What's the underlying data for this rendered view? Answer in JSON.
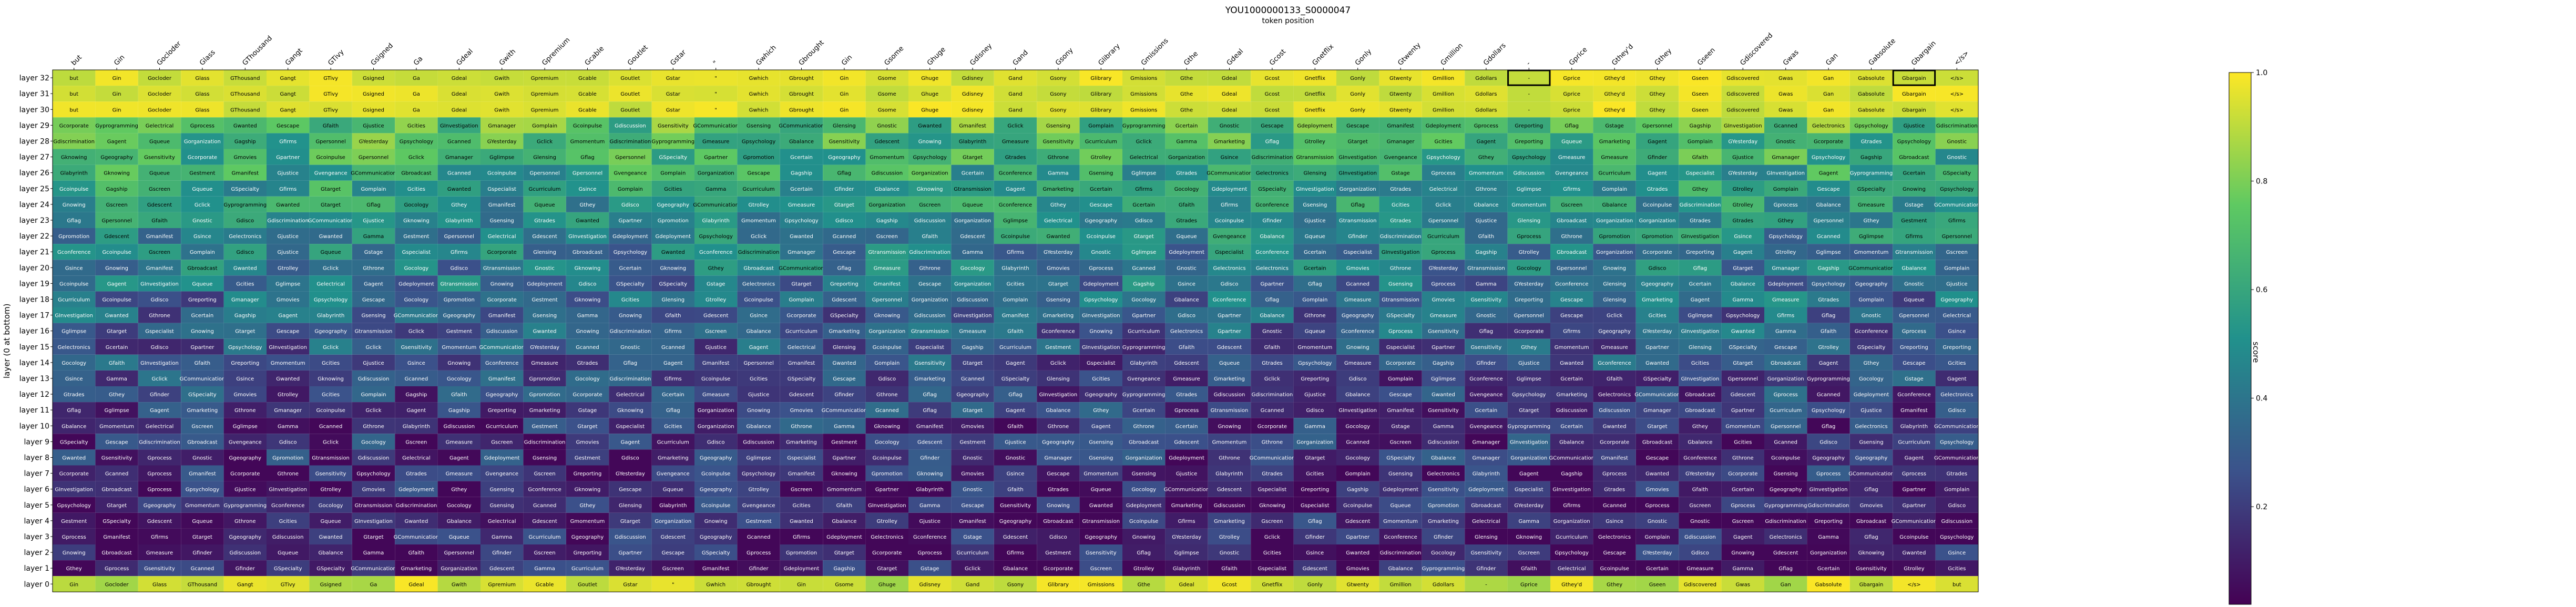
{
  "chart_data": {
    "type": "heatmap",
    "title": "YOU1000000133_S0000047",
    "xlabel": "token position",
    "ylabel": "layer (0 at bottom)",
    "colorbar_label": "score",
    "colorbar_ticks": [
      "0.2",
      "0.4",
      "0.6",
      "0.8",
      "1.0"
    ],
    "colormap": "viridis",
    "colors": {
      "low": "#440154",
      "mid": "#21918c",
      "high": "#fde725",
      "highlight_border": "#000000"
    },
    "x_tokens": [
      "but",
      "Gin",
      "Gocloder",
      "Glass",
      "GThousand",
      "Gangt",
      "GTivy",
      "Gsigned",
      "Ga",
      "Gdeal",
      "Gwith",
      "Gpremium",
      "Gcable",
      "Goutlet",
      "Gstar",
      "\"",
      "Gwhich",
      "Gbrought",
      "Gin",
      "Gsome",
      "Ghuge",
      "Gdisney",
      "Gand",
      "Gsony",
      "Glibrary",
      "Gmissions",
      "Gthe",
      "Gdeal",
      "Gcost",
      "Gnetflix",
      "Gonly",
      "Gtwenty",
      "Gmillion",
      "Gdollars",
      "-",
      "Gprice",
      "Gthey'd",
      "Gthey",
      "Gseen",
      "Gdiscovered",
      "Gwas",
      "Gan",
      "Gabsolute",
      "Gbargain",
      "</s>"
    ],
    "layers": [
      "layer 32",
      "layer 31",
      "layer 30",
      "layer 29",
      "layer 28",
      "layer 27",
      "layer 26",
      "layer 25",
      "layer 24",
      "layer 23",
      "layer 22",
      "layer 21",
      "layer 20",
      "layer 19",
      "layer 18",
      "layer 17",
      "layer 16",
      "layer 15",
      "layer 14",
      "layer 13",
      "layer 12",
      "layer 11",
      "layer 10",
      "layer 9",
      "layer 8",
      "layer 7",
      "layer 6",
      "layer 5",
      "layer 4",
      "layer 3",
      "layer 2",
      "layer 1",
      "layer 0"
    ],
    "vocab": [
      "Gocology",
      "Gmarketing",
      "Gyprogramming",
      "GYesterday",
      "Gagship",
      "Gcorporate",
      "Gsince",
      "Gjustice",
      "Gthey",
      "GSpecialty",
      "Gelectrical",
      "Gomplain",
      "Gelectronics",
      "Gnostic",
      "Gamma",
      "Gvengeance",
      "Ggeography",
      "Gpsychology",
      "GInvestigation",
      "GCommunication",
      "Gestment",
      "Gclick",
      "Gnowing",
      "Gqueue",
      "Gcoinpulse",
      "Gmanifest",
      "Gflag",
      "Gdisco",
      "Gglimpse",
      "Gmanager",
      "Glensing",
      "Gpersonnel",
      "Gwanted",
      "Gcanned",
      "Gconference",
      "Gtransmission",
      "Gorganization",
      "Gdescent",
      "Gmovies",
      "Gtarget",
      "Gtrades",
      "Gsensitivity",
      "Gknowing",
      "Gbroadcast",
      "Gcities",
      "Gthrone",
      "Gfirms",
      "Gcertain",
      "Gmeasure",
      "Gspecialist",
      "Gtrolley",
      "Gstage",
      "Gpartner",
      "Gdiscrimination",
      "Gbalance",
      "Gscreen",
      "Gsensing",
      "Gdiscussion",
      "Greporting",
      "Gdeployment",
      "Gfinder",
      "Gescape",
      "Gcurriculum",
      "Gfaith",
      "Gpromotion",
      "Gagent",
      "Glabyrinth",
      "Gprocess",
      "Gmomentum"
    ],
    "highlight_cells": [
      [
        0,
        34
      ],
      [
        0,
        43
      ]
    ]
  }
}
